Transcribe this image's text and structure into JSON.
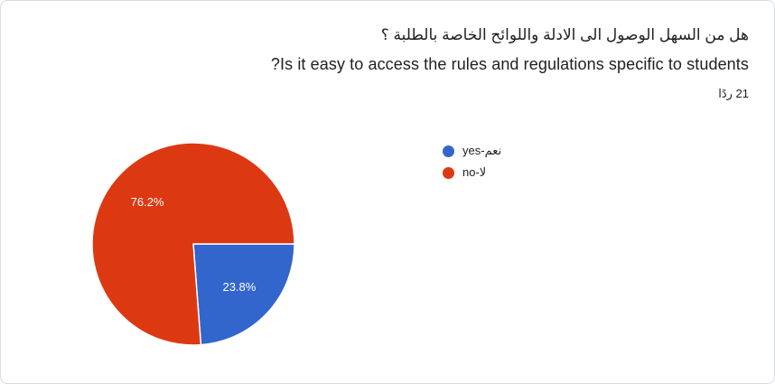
{
  "question": {
    "arabic": "هل من السهل الوصول الى الادلة واللوائح الخاصة بالطلبة ؟",
    "english": "Is it easy to access the rules and regulations specific to students?"
  },
  "response_count": "21 ردًا",
  "chart_data": {
    "type": "pie",
    "title": "",
    "slices": [
      {
        "name": "نعم-yes",
        "value": 23.8,
        "label": "23.8%",
        "color": "#3366cc"
      },
      {
        "name": "لا-no",
        "value": 76.2,
        "label": "76.2%",
        "color": "#dc3912"
      }
    ],
    "legend_position": "right"
  }
}
